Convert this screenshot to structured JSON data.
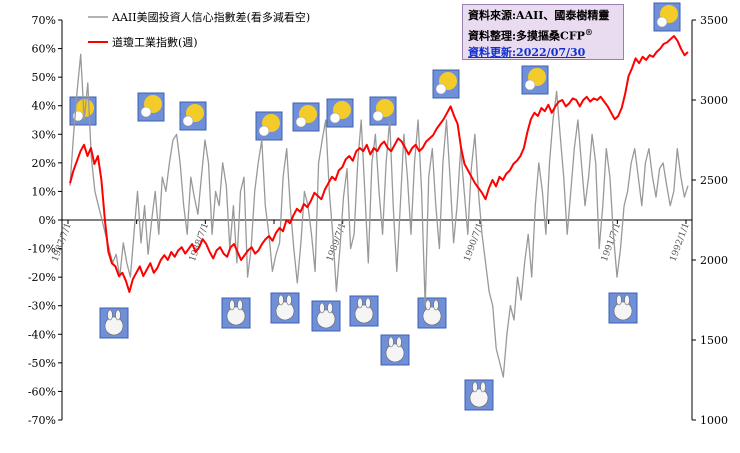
{
  "chart_data": {
    "type": "line",
    "legend": [
      "AAII美國投資人信心指數差(看多減看空)",
      "道瓊工業指數(週)"
    ],
    "legend_placement": "top-left",
    "series": [
      {
        "name": "AAII美國投資人信心指數差(看多減看空)",
        "axis": "left",
        "color": "#999999",
        "values": [
          12,
          30,
          45,
          58,
          35,
          48,
          22,
          10,
          5,
          0,
          -5,
          -10,
          -15,
          -12,
          -20,
          -8,
          -15,
          -20,
          -5,
          10,
          -8,
          5,
          -12,
          0,
          10,
          -5,
          15,
          10,
          20,
          28,
          30,
          20,
          5,
          -5,
          15,
          8,
          2,
          15,
          28,
          20,
          -5,
          10,
          5,
          20,
          12,
          -10,
          5,
          -15,
          10,
          15,
          -20,
          -10,
          10,
          20,
          28,
          5,
          -5,
          -18,
          -12,
          -8,
          15,
          25,
          5,
          -10,
          -22,
          -8,
          10,
          5,
          -5,
          -18,
          20,
          28,
          35,
          10,
          -5,
          -25,
          -10,
          8,
          18,
          -10,
          -5,
          20,
          35,
          10,
          -15,
          20,
          30,
          10,
          -5,
          20,
          35,
          5,
          -18,
          5,
          30,
          15,
          -5,
          20,
          35,
          10,
          -30,
          15,
          25,
          5,
          -10,
          20,
          35,
          15,
          -8,
          5,
          25,
          10,
          -5,
          18,
          30,
          10,
          -5,
          -15,
          -25,
          -30,
          -45,
          -50,
          -55,
          -40,
          -30,
          -35,
          -20,
          -28,
          -15,
          -5,
          -20,
          5,
          20,
          10,
          -5,
          20,
          35,
          45,
          30,
          15,
          -5,
          10,
          25,
          35,
          20,
          5,
          15,
          30,
          20,
          -10,
          5,
          25,
          15,
          -5,
          -20,
          -10,
          5,
          10,
          20,
          25,
          15,
          5,
          20,
          25,
          15,
          8,
          18,
          20,
          12,
          5,
          10,
          25,
          15,
          8,
          12
        ]
      },
      {
        "name": "道瓊工業指數(週)",
        "axis": "right",
        "color": "#ff0000",
        "values": [
          2480,
          2560,
          2620,
          2680,
          2720,
          2650,
          2700,
          2600,
          2650,
          2500,
          2250,
          2050,
          1980,
          1960,
          1900,
          1920,
          1870,
          1800,
          1880,
          1920,
          1960,
          1900,
          1940,
          1980,
          1920,
          1950,
          2000,
          2030,
          2000,
          2050,
          2020,
          2060,
          2080,
          2040,
          2070,
          2100,
          2050,
          2080,
          2130,
          2100,
          2050,
          2010,
          2060,
          2080,
          2040,
          2020,
          2080,
          2100,
          2050,
          2000,
          2030,
          2060,
          2080,
          2040,
          2060,
          2100,
          2130,
          2150,
          2120,
          2170,
          2200,
          2180,
          2250,
          2230,
          2280,
          2320,
          2300,
          2350,
          2330,
          2370,
          2420,
          2400,
          2380,
          2440,
          2480,
          2520,
          2500,
          2560,
          2580,
          2630,
          2650,
          2620,
          2680,
          2700,
          2680,
          2720,
          2660,
          2700,
          2680,
          2720,
          2740,
          2700,
          2680,
          2720,
          2760,
          2740,
          2700,
          2660,
          2700,
          2720,
          2680,
          2700,
          2740,
          2760,
          2780,
          2820,
          2850,
          2880,
          2920,
          2960,
          2900,
          2850,
          2700,
          2600,
          2560,
          2520,
          2480,
          2450,
          2420,
          2380,
          2450,
          2500,
          2460,
          2520,
          2500,
          2540,
          2560,
          2600,
          2620,
          2650,
          2700,
          2800,
          2880,
          2920,
          2900,
          2950,
          2930,
          2970,
          2920,
          2960,
          2990,
          3000,
          2960,
          2980,
          3010,
          3000,
          2960,
          3000,
          3020,
          2990,
          3010,
          3000,
          3020,
          2990,
          2960,
          2920,
          2880,
          2900,
          2950,
          3040,
          3150,
          3200,
          3260,
          3230,
          3270,
          3250,
          3280,
          3270,
          3300,
          3320,
          3350,
          3360,
          3380,
          3400,
          3370,
          3320,
          3280,
          3300
        ]
      }
    ],
    "x_ticks": [
      "1987/7/1",
      "1988/1/1",
      "1988/7/1",
      "1989/1/1",
      "1989/7/1",
      "1990/1/1",
      "1990/7/1",
      "1991/1/1",
      "1991/7/1",
      "1992/1/1"
    ],
    "x_tick_labels_shown": [
      "1987/7/1",
      "1988/7/1",
      "1989/7/1",
      "1990/7/1",
      "1991/7/1",
      "1992/1/1"
    ],
    "y_left": {
      "ticks": [
        "70%",
        "60%",
        "50%",
        "40%",
        "30%",
        "20%",
        "10%",
        "0%",
        "-10%",
        "-20%",
        "-30%",
        "-40%",
        "-50%",
        "-60%",
        "-70%"
      ],
      "ylim": [
        -70,
        70
      ]
    },
    "y_right": {
      "ticks": [
        "3500",
        "3000",
        "2500",
        "2000",
        "1500",
        "1000"
      ],
      "ylim": [
        1000,
        3500
      ]
    },
    "grid": false
  },
  "info_box": {
    "line1": "資料來源:AAII、國泰樹精靈",
    "line2": "資料整理:多摸摳桑CFP",
    "line2_sup": "®",
    "line3": "資料更新:2022/07/30"
  },
  "icons": {
    "top": "gold-god-of-wealth-icon",
    "bottom": "white-bunny-icon"
  },
  "colors": {
    "aaii": "#999999",
    "djia": "#ff0000",
    "box": "#eadcf0"
  }
}
